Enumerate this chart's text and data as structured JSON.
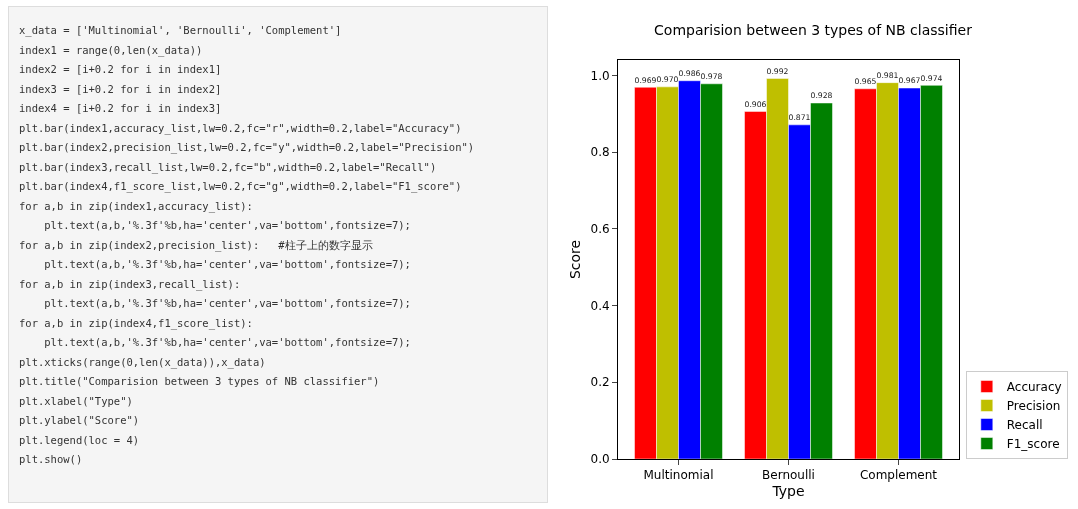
{
  "chart_data": [
    {
      "type": "other",
      "annotations": [
        "x_data = ['Multinomial', 'Bernoulli', 'Complement']",
        "index1 = range(0,len(x_data))",
        "index2 = [i+0.2 for i in index1]",
        "index3 = [i+0.2 for i in index2]",
        "index4 = [i+0.2 for i in index3]",
        "plt.bar(index1,accuracy_list,lw=0.2,fc=\"r\",width=0.2,label=\"Accuracy\")",
        "plt.bar(index2,precision_list,lw=0.2,fc=\"y\",width=0.2,label=\"Precision\")",
        "plt.bar(index3,recall_list,lw=0.2,fc=\"b\",width=0.2,label=\"Recall\")",
        "plt.bar(index4,f1_score_list,lw=0.2,fc=\"g\",width=0.2,label=\"F1_score\")",
        "for a,b in zip(index1,accuracy_list):",
        "    plt.text(a,b,'%.3f'%b,ha='center',va='bottom',fontsize=7);",
        "for a,b in zip(index2,precision_list):   #柱子上的数字显示",
        "    plt.text(a,b,'%.3f'%b,ha='center',va='bottom',fontsize=7);",
        "for a,b in zip(index3,recall_list):",
        "    plt.text(a,b,'%.3f'%b,ha='center',va='bottom',fontsize=7);",
        "for a,b in zip(index4,f1_score_list):",
        "    plt.text(a,b,'%.3f'%b,ha='center',va='bottom',fontsize=7);",
        "plt.xticks(range(0,len(x_data)),x_data)",
        "plt.title(\"Comparision between 3 types of NB classifier\")",
        "plt.xlabel(\"Type\")",
        "plt.ylabel(\"Score\")",
        "plt.legend(loc = 4)",
        "plt.show()"
      ]
    },
    {
      "type": "bar",
      "title": "Comparision between 3 types of NB classifier",
      "xlabel": "Type",
      "ylabel": "Score",
      "categories": [
        "Multinomial",
        "Bernoulli",
        "Complement"
      ],
      "series": [
        {
          "name": "Accuracy",
          "color": "#ff0000",
          "values": [
            0.969,
            0.906,
            0.965
          ],
          "value_labels": [
            "0.969",
            "0.906",
            "0.965"
          ]
        },
        {
          "name": "Precision",
          "color": "#bfbf00",
          "values": [
            0.97,
            0.992,
            0.981
          ],
          "value_labels": [
            "0.970",
            "0.992",
            "0.981"
          ]
        },
        {
          "name": "Recall",
          "color": "#0000ff",
          "values": [
            0.986,
            0.871,
            0.967
          ],
          "value_labels": [
            "0.986",
            "0.871",
            "0.967"
          ]
        },
        {
          "name": "F1_score",
          "color": "#008000",
          "values": [
            0.978,
            0.928,
            0.974
          ],
          "value_labels": [
            "0.978",
            "0.928",
            "0.974"
          ]
        }
      ],
      "ylim": [
        0,
        1.04
      ],
      "yticks": [
        {
          "value": 0,
          "label": "0.0"
        },
        {
          "value": 0.2,
          "label": "0.2"
        },
        {
          "value": 0.4,
          "label": "0.4"
        },
        {
          "value": 0.6,
          "label": "0.6"
        },
        {
          "value": 0.8,
          "label": "0.8"
        },
        {
          "value": 1,
          "label": "1.0"
        }
      ],
      "grid": false,
      "legend": "bottom right"
    }
  ]
}
